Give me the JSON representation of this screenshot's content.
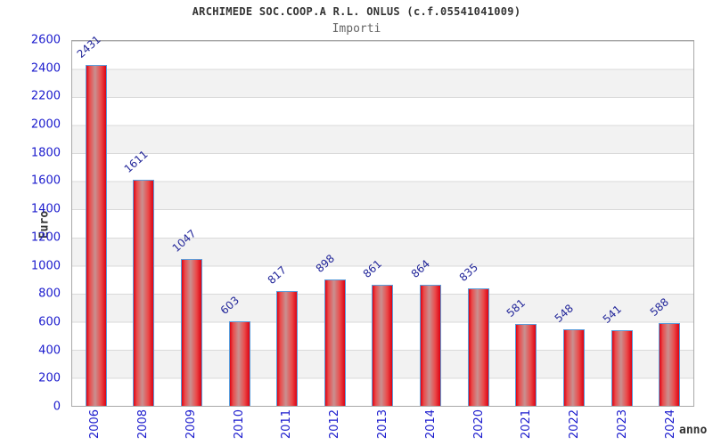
{
  "chart_data": {
    "type": "bar",
    "title": "ARCHIMEDE SOC.COOP.A R.L. ONLUS (c.f.05541041009)",
    "subtitle": "Importi",
    "xlabel": "anno",
    "ylabel": "Euro",
    "categories": [
      "2006",
      "2008",
      "2009",
      "2010",
      "2011",
      "2012",
      "2013",
      "2014",
      "2020",
      "2021",
      "2022",
      "2023",
      "2024"
    ],
    "values": [
      2431,
      1611,
      1047,
      603,
      817,
      898,
      861,
      864,
      835,
      581,
      548,
      541,
      588
    ],
    "ylim": [
      0,
      2600
    ],
    "ytick_step": 200,
    "grid": true,
    "legend": "none",
    "band_fill": "alternating horizontal bands per 200 units"
  },
  "colors": {
    "bar_red": "#dd0313",
    "bar_highlight": "#c99090",
    "bar_border": "#5b9ddb",
    "tick_label_blue": "#1a1acd",
    "value_label_navy": "#23279a",
    "band_gray": "#f2f2f2",
    "gridline_gray": "#d9d9d9",
    "plot_border_gray": "#a8a8a8",
    "title_color": "#333333",
    "subtitle_color": "#666666"
  }
}
